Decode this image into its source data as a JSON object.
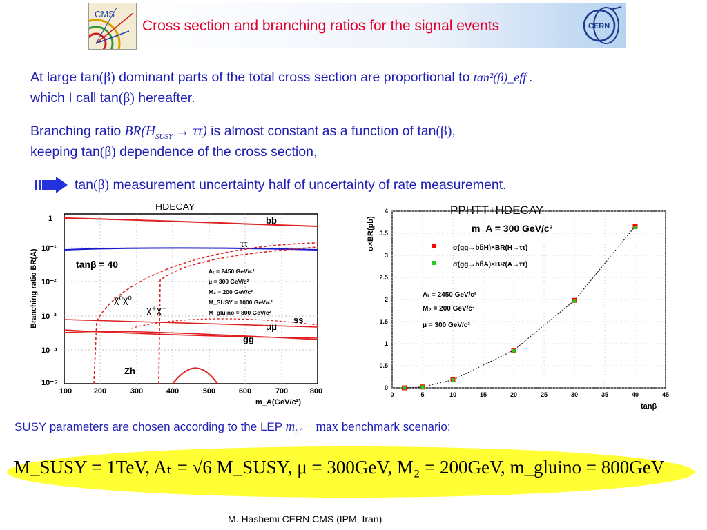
{
  "header": {
    "title": "Cross section and branching ratios for the signal events",
    "logo_left": "CMS",
    "logo_right": "CERN",
    "title_color": "#e0002a"
  },
  "body_text": {
    "line1_pre": "At large tan",
    "beta": "(β)",
    "line1_post": " dominant parts of the total cross section are proportional to ",
    "line1_formula": "tan²(β)_eff .",
    "line2_pre": "which I call tan",
    "line2_post": " hereafter.",
    "line3_pre": "Branching ratio ",
    "line3_formula": "BR(H",
    "line3_sub": "SUSY",
    "line3_formula_end": " → ττ)",
    "line3_post": " is almost constant as a function of tan",
    "line3_end": ",",
    "line4_pre": "keeping tan",
    "line4_post": " dependence of the cross section,",
    "line5_pre": "tan",
    "line5_post": "  measurement uncertainty half of uncertainty of rate measurement."
  },
  "left_chart": {
    "title": "HDECAY",
    "ylabel": "Branching ratio BR(A)",
    "xlabel": "m_A(GeV/c²)",
    "xticks": [
      "100",
      "200",
      "300",
      "400",
      "500",
      "600",
      "700",
      "800"
    ],
    "yticks": [
      "1",
      "10⁻¹",
      "10⁻²",
      "10⁻³",
      "10⁻⁴",
      "10⁻⁵"
    ],
    "labels": {
      "bb": "bb",
      "tautau": "ττ",
      "tanb": "tanβ = 40",
      "chi0": "χ⁰χ⁰",
      "chipm": "χ⁺χ⁻",
      "ss": "ss",
      "mumu": "μμ",
      "gg": "gg",
      "zh": "Zh"
    },
    "params": [
      "Aₜ = 2450 GeV/c²",
      "μ = 300 GeV/c²",
      "M₂ = 200 GeV/c²",
      "M_SUSY = 1000 GeV/c²",
      "M_gluino = 800 GeV/c²"
    ]
  },
  "right_chart": {
    "title": "PPHTT+HDECAY",
    "ylabel": "σ×BR(pb)",
    "xlabel": "tanβ",
    "mass": "m_A = 300 GeV/c²",
    "legend": [
      "σ(gg→bb̄H)×BR(H→ττ)",
      "σ(gg→bb̄A)×BR(A→ττ)"
    ],
    "params": [
      "Aₜ = 2450 GeV/c²",
      "M₂ = 200 GeV/c²",
      "μ = 300 GeV/c²"
    ],
    "xticks": [
      "0",
      "5",
      "10",
      "15",
      "20",
      "25",
      "30",
      "35",
      "40",
      "45"
    ],
    "yticks": [
      "0",
      "0.5",
      "1",
      "1.5",
      "2",
      "2.5",
      "3",
      "3.5",
      "4"
    ]
  },
  "chart_data": {
    "type": "scatter",
    "title": "PPHTT+HDECAY",
    "xlabel": "tanβ",
    "ylabel": "σ×BR(pb)",
    "xlim": [
      0,
      45
    ],
    "ylim": [
      0,
      4
    ],
    "series": [
      {
        "name": "σ(gg→bb̄H)×BR(H→ττ)",
        "color": "#ff0000",
        "x": [
          2,
          5,
          10,
          20,
          30,
          40
        ],
        "y": [
          0.0,
          0.02,
          0.18,
          0.85,
          1.98,
          3.66
        ]
      },
      {
        "name": "σ(gg→bb̄A)×BR(A→ττ)",
        "color": "#22cc22",
        "x": [
          2,
          5,
          10,
          20,
          30,
          40
        ],
        "y": [
          0.0,
          0.02,
          0.18,
          0.84,
          1.97,
          3.63
        ]
      }
    ]
  },
  "susy": {
    "pre": "SUSY parameters are chosen according to the LEP ",
    "formula": "m",
    "sub": "h⁰",
    "formula_end": " − max",
    "post": " benchmark scenario:"
  },
  "formula": {
    "text": "M_SUSY = 1TeV,  Aₜ = √6 M_SUSY,  μ = 300GeV,  M₂ = 200GeV,  m_gluino = 800GeV",
    "ellipse_color": "#ffff33"
  },
  "footer": {
    "text": "M. Hashemi CERN,CMS (IPM, Iran)"
  }
}
